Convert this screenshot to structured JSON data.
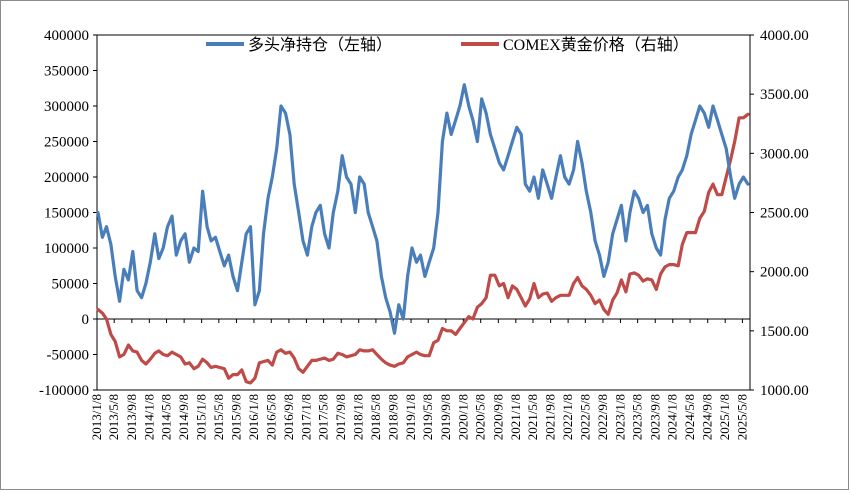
{
  "chart_data": {
    "type": "line",
    "title": "",
    "xlabel": "",
    "ylabel": "",
    "y_left": {
      "range": [
        -100000,
        400000
      ],
      "ticks": [
        "400000",
        "350000",
        "300000",
        "250000",
        "200000",
        "150000",
        "100000",
        "50000",
        "0",
        "-50000",
        "-100000"
      ]
    },
    "y_right": {
      "range": [
        1000,
        4000
      ],
      "ticks": [
        "4000.00",
        "3500.00",
        "3000.00",
        "2500.00",
        "2000.00",
        "1500.00",
        "1000.00"
      ]
    },
    "x_range": [
      "2013/1/8",
      "2025/6/30"
    ],
    "x_ticks": [
      "2013/1/8",
      "2013/5/8",
      "2013/9/8",
      "2014/1/8",
      "2014/5/8",
      "2014/9/8",
      "2015/1/8",
      "2015/5/8",
      "2015/9/8",
      "2016/1/8",
      "2016/5/8",
      "2016/9/8",
      "2017/1/8",
      "2017/5/8",
      "2017/9/8",
      "2018/1/8",
      "2018/5/8",
      "2018/9/8",
      "2019/1/8",
      "2019/5/8",
      "2019/9/8",
      "2020/1/8",
      "2020/5/8",
      "2020/9/8",
      "2021/1/8",
      "2021/5/8",
      "2021/9/8",
      "2022/1/8",
      "2022/5/8",
      "2022/9/8",
      "2023/1/8",
      "2023/5/8",
      "2023/9/8",
      "2024/1/8",
      "2024/5/8",
      "2024/9/8",
      "2025/1/8",
      "2025/5/8"
    ],
    "legend_position": "top",
    "grid": false,
    "series": [
      {
        "name": "多头净持仓（左轴）",
        "axis": "left",
        "color": "#4a7ebb",
        "x": [
          "2013/1",
          "2013/2",
          "2013/3",
          "2013/4",
          "2013/5",
          "2013/6",
          "2013/7",
          "2013/8",
          "2013/9",
          "2013/10",
          "2013/11",
          "2013/12",
          "2014/1",
          "2014/2",
          "2014/3",
          "2014/4",
          "2014/5",
          "2014/6",
          "2014/7",
          "2014/8",
          "2014/9",
          "2014/10",
          "2014/11",
          "2014/12",
          "2015/1",
          "2015/2",
          "2015/3",
          "2015/4",
          "2015/5",
          "2015/6",
          "2015/7",
          "2015/8",
          "2015/9",
          "2015/10",
          "2015/11",
          "2015/12",
          "2016/1",
          "2016/2",
          "2016/3",
          "2016/4",
          "2016/5",
          "2016/6",
          "2016/7",
          "2016/8",
          "2016/9",
          "2016/10",
          "2016/11",
          "2016/12",
          "2017/1",
          "2017/2",
          "2017/3",
          "2017/4",
          "2017/5",
          "2017/6",
          "2017/7",
          "2017/8",
          "2017/9",
          "2017/10",
          "2017/11",
          "2017/12",
          "2018/1",
          "2018/2",
          "2018/3",
          "2018/4",
          "2018/5",
          "2018/6",
          "2018/7",
          "2018/8",
          "2018/9",
          "2018/10",
          "2018/11",
          "2018/12",
          "2019/1",
          "2019/2",
          "2019/3",
          "2019/4",
          "2019/5",
          "2019/6",
          "2019/7",
          "2019/8",
          "2019/9",
          "2019/10",
          "2019/11",
          "2019/12",
          "2020/1",
          "2020/2",
          "2020/3",
          "2020/4",
          "2020/5",
          "2020/6",
          "2020/7",
          "2020/8",
          "2020/9",
          "2020/10",
          "2020/11",
          "2020/12",
          "2021/1",
          "2021/2",
          "2021/3",
          "2021/4",
          "2021/5",
          "2021/6",
          "2021/7",
          "2021/8",
          "2021/9",
          "2021/10",
          "2021/11",
          "2021/12",
          "2022/1",
          "2022/2",
          "2022/3",
          "2022/4",
          "2022/5",
          "2022/6",
          "2022/7",
          "2022/8",
          "2022/9",
          "2022/10",
          "2022/11",
          "2022/12",
          "2023/1",
          "2023/2",
          "2023/3",
          "2023/4",
          "2023/5",
          "2023/6",
          "2023/7",
          "2023/8",
          "2023/9",
          "2023/10",
          "2023/11",
          "2023/12",
          "2024/1",
          "2024/2",
          "2024/3",
          "2024/4",
          "2024/5",
          "2024/6",
          "2024/7",
          "2024/8",
          "2024/9",
          "2024/10",
          "2024/11",
          "2024/12",
          "2025/1",
          "2025/2",
          "2025/3",
          "2025/4",
          "2025/5",
          "2025/6"
        ],
        "values": [
          150000,
          115000,
          130000,
          105000,
          60000,
          25000,
          70000,
          55000,
          95000,
          40000,
          30000,
          50000,
          80000,
          120000,
          85000,
          100000,
          130000,
          145000,
          90000,
          110000,
          120000,
          80000,
          100000,
          95000,
          180000,
          130000,
          110000,
          115000,
          95000,
          75000,
          90000,
          60000,
          40000,
          80000,
          120000,
          130000,
          20000,
          40000,
          120000,
          170000,
          200000,
          240000,
          300000,
          290000,
          260000,
          190000,
          150000,
          110000,
          90000,
          130000,
          150000,
          160000,
          120000,
          100000,
          150000,
          180000,
          230000,
          200000,
          190000,
          150000,
          200000,
          190000,
          150000,
          130000,
          110000,
          60000,
          30000,
          10000,
          -20000,
          20000,
          0,
          60000,
          100000,
          80000,
          90000,
          60000,
          80000,
          100000,
          150000,
          250000,
          290000,
          260000,
          280000,
          300000,
          330000,
          300000,
          280000,
          250000,
          310000,
          290000,
          260000,
          240000,
          220000,
          210000,
          230000,
          250000,
          270000,
          260000,
          190000,
          180000,
          200000,
          170000,
          210000,
          190000,
          170000,
          200000,
          230000,
          200000,
          190000,
          210000,
          250000,
          220000,
          180000,
          150000,
          110000,
          90000,
          60000,
          80000,
          120000,
          140000,
          160000,
          110000,
          150000,
          180000,
          170000,
          150000,
          160000,
          120000,
          100000,
          90000,
          140000,
          170000,
          180000,
          200000,
          210000,
          230000,
          260000,
          280000,
          300000,
          290000,
          270000,
          300000,
          280000,
          260000,
          240000,
          200000,
          170000,
          190000,
          200000,
          190000
        ]
      },
      {
        "name": "COMEX黄金价格（右轴）",
        "axis": "right",
        "color": "#be4b48",
        "x": [
          "2013/1",
          "2013/2",
          "2013/3",
          "2013/4",
          "2013/5",
          "2013/6",
          "2013/7",
          "2013/8",
          "2013/9",
          "2013/10",
          "2013/11",
          "2013/12",
          "2014/1",
          "2014/2",
          "2014/3",
          "2014/4",
          "2014/5",
          "2014/6",
          "2014/7",
          "2014/8",
          "2014/9",
          "2014/10",
          "2014/11",
          "2014/12",
          "2015/1",
          "2015/2",
          "2015/3",
          "2015/4",
          "2015/5",
          "2015/6",
          "2015/7",
          "2015/8",
          "2015/9",
          "2015/10",
          "2015/11",
          "2015/12",
          "2016/1",
          "2016/2",
          "2016/3",
          "2016/4",
          "2016/5",
          "2016/6",
          "2016/7",
          "2016/8",
          "2016/9",
          "2016/10",
          "2016/11",
          "2016/12",
          "2017/1",
          "2017/2",
          "2017/3",
          "2017/4",
          "2017/5",
          "2017/6",
          "2017/7",
          "2017/8",
          "2017/9",
          "2017/10",
          "2017/11",
          "2017/12",
          "2018/1",
          "2018/2",
          "2018/3",
          "2018/4",
          "2018/5",
          "2018/6",
          "2018/7",
          "2018/8",
          "2018/9",
          "2018/10",
          "2018/11",
          "2018/12",
          "2019/1",
          "2019/2",
          "2019/3",
          "2019/4",
          "2019/5",
          "2019/6",
          "2019/7",
          "2019/8",
          "2019/9",
          "2019/10",
          "2019/11",
          "2019/12",
          "2020/1",
          "2020/2",
          "2020/3",
          "2020/4",
          "2020/5",
          "2020/6",
          "2020/7",
          "2020/8",
          "2020/9",
          "2020/10",
          "2020/11",
          "2020/12",
          "2021/1",
          "2021/2",
          "2021/3",
          "2021/4",
          "2021/5",
          "2021/6",
          "2021/7",
          "2021/8",
          "2021/9",
          "2021/10",
          "2021/11",
          "2021/12",
          "2022/1",
          "2022/2",
          "2022/3",
          "2022/4",
          "2022/5",
          "2022/6",
          "2022/7",
          "2022/8",
          "2022/9",
          "2022/10",
          "2022/11",
          "2022/12",
          "2023/1",
          "2023/2",
          "2023/3",
          "2023/4",
          "2023/5",
          "2023/6",
          "2023/7",
          "2023/8",
          "2023/9",
          "2023/10",
          "2023/11",
          "2023/12",
          "2024/1",
          "2024/2",
          "2024/3",
          "2024/4",
          "2024/5",
          "2024/6",
          "2024/7",
          "2024/8",
          "2024/9",
          "2024/10",
          "2024/11",
          "2024/12",
          "2025/1",
          "2025/2",
          "2025/3",
          "2025/4",
          "2025/5",
          "2025/6"
        ],
        "values": [
          1680,
          1650,
          1600,
          1470,
          1410,
          1280,
          1300,
          1380,
          1330,
          1320,
          1250,
          1220,
          1260,
          1310,
          1330,
          1300,
          1290,
          1320,
          1300,
          1280,
          1220,
          1230,
          1180,
          1200,
          1260,
          1230,
          1190,
          1200,
          1190,
          1180,
          1100,
          1130,
          1130,
          1170,
          1070,
          1060,
          1100,
          1230,
          1240,
          1250,
          1210,
          1320,
          1340,
          1310,
          1320,
          1270,
          1180,
          1150,
          1200,
          1250,
          1250,
          1260,
          1270,
          1250,
          1260,
          1310,
          1300,
          1280,
          1290,
          1300,
          1340,
          1330,
          1330,
          1340,
          1300,
          1260,
          1230,
          1210,
          1200,
          1220,
          1230,
          1280,
          1300,
          1320,
          1300,
          1290,
          1290,
          1400,
          1420,
          1520,
          1500,
          1500,
          1470,
          1520,
          1570,
          1620,
          1600,
          1700,
          1730,
          1780,
          1970,
          1970,
          1880,
          1900,
          1780,
          1880,
          1850,
          1780,
          1710,
          1770,
          1900,
          1780,
          1810,
          1820,
          1750,
          1780,
          1800,
          1800,
          1800,
          1900,
          1950,
          1880,
          1850,
          1800,
          1730,
          1760,
          1680,
          1640,
          1760,
          1820,
          1930,
          1830,
          1980,
          1990,
          1970,
          1920,
          1940,
          1930,
          1850,
          1980,
          2040,
          2060,
          2060,
          2050,
          2230,
          2330,
          2330,
          2330,
          2450,
          2510,
          2670,
          2740,
          2650,
          2650,
          2800,
          2950,
          3100,
          3300,
          3300,
          3330
        ]
      }
    ]
  }
}
